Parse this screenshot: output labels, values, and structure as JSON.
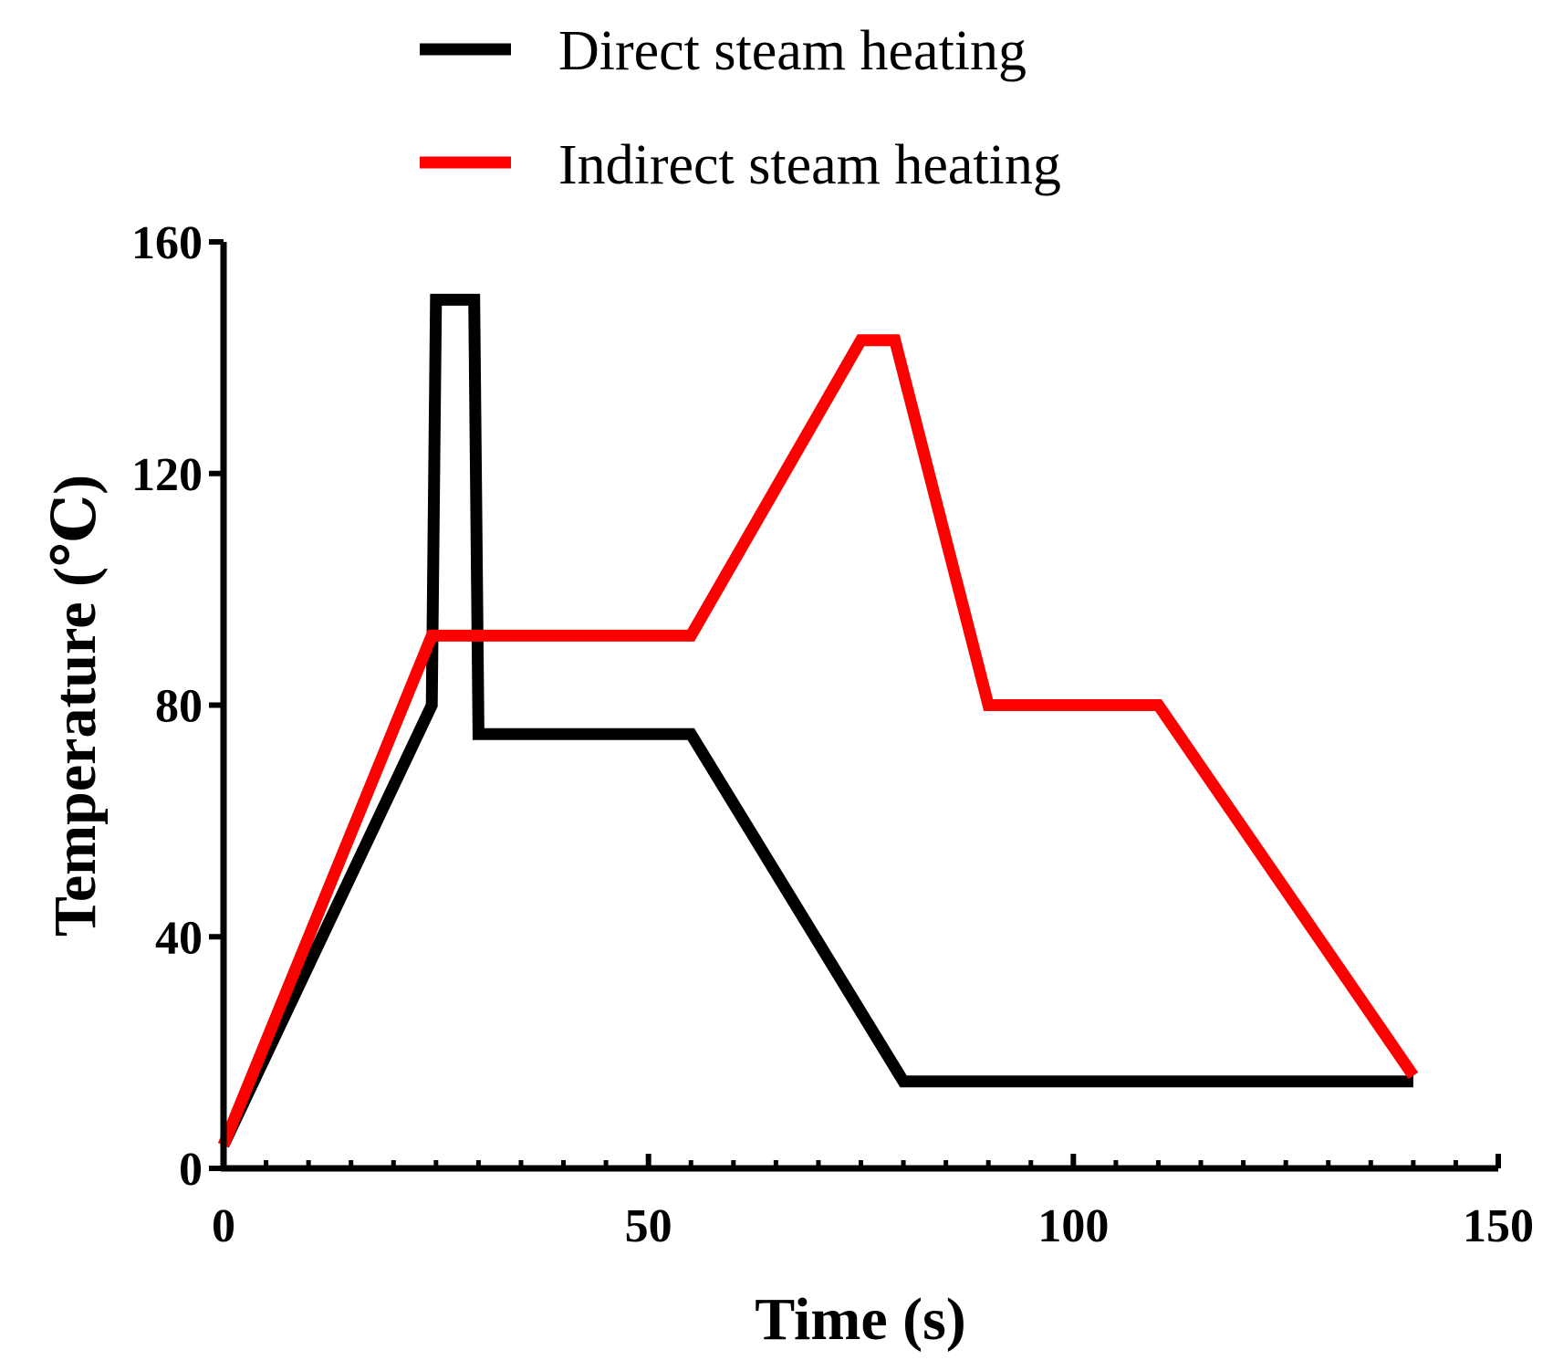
{
  "chart_data": {
    "type": "line",
    "title": "",
    "xlabel": "Time (s)",
    "ylabel": "Temperature (℃)",
    "xlim": [
      0,
      150
    ],
    "ylim": [
      0,
      160
    ],
    "x_ticks": [
      0,
      50,
      100,
      150
    ],
    "y_ticks": [
      0,
      40,
      80,
      120,
      160
    ],
    "x_minor_step": 5,
    "grid": false,
    "legend_position": "top",
    "series": [
      {
        "name": "Direct steam heating",
        "color": "#000000",
        "x": [
          0,
          24.5,
          25,
          29.5,
          30,
          55,
          80,
          140
        ],
        "y": [
          4,
          80,
          150,
          150,
          75,
          75,
          15,
          15
        ]
      },
      {
        "name": "Indirect steam heating",
        "color": "#ff0000",
        "x": [
          0,
          24.5,
          55,
          75,
          79,
          90,
          110,
          140
        ],
        "y": [
          4,
          92,
          92,
          143,
          143,
          80,
          80,
          16
        ]
      }
    ]
  }
}
